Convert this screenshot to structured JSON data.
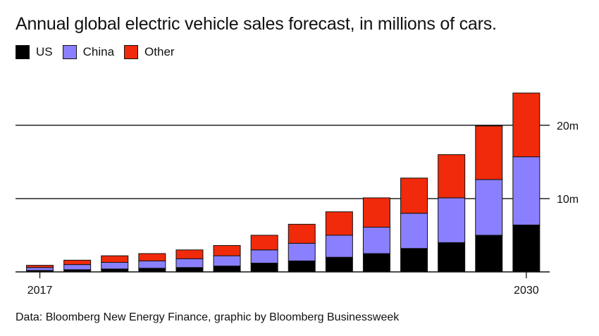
{
  "title": "Annual global electric vehicle sales forecast, in millions of cars.",
  "legend": [
    {
      "label": "US",
      "color": "#000000"
    },
    {
      "label": "China",
      "color": "#8a80ff"
    },
    {
      "label": "Other",
      "color": "#f02a0a"
    }
  ],
  "source": "Data: Bloomberg New Energy Finance, graphic by Bloomberg Businessweek",
  "chart_data": {
    "type": "bar",
    "stacked": true,
    "x": [
      2017,
      2018,
      2019,
      2020,
      2021,
      2022,
      2023,
      2024,
      2025,
      2026,
      2027,
      2028,
      2029,
      2030
    ],
    "x_tick_labels": [
      {
        "x": 2017,
        "label": "2017"
      },
      {
        "x": 2030,
        "label": "2030"
      }
    ],
    "series": [
      {
        "name": "US",
        "color": "#000000",
        "values": [
          0.2,
          0.3,
          0.4,
          0.5,
          0.6,
          0.8,
          1.2,
          1.5,
          2.0,
          2.5,
          3.2,
          4.0,
          5.0,
          6.4
        ]
      },
      {
        "name": "China",
        "color": "#8a80ff",
        "values": [
          0.4,
          0.7,
          0.9,
          1.0,
          1.2,
          1.4,
          1.8,
          2.4,
          3.0,
          3.6,
          4.8,
          6.1,
          7.6,
          9.3
        ]
      },
      {
        "name": "Other",
        "color": "#f02a0a",
        "values": [
          0.3,
          0.6,
          0.9,
          1.0,
          1.2,
          1.4,
          2.0,
          2.6,
          3.2,
          4.0,
          4.8,
          5.9,
          7.3,
          8.7
        ]
      }
    ],
    "y_ticks": [
      {
        "value": 10,
        "label": "10m"
      },
      {
        "value": 20,
        "label": "20m"
      }
    ],
    "ylim": [
      0,
      24.5
    ],
    "xlabel": "",
    "ylabel": "",
    "grid": true,
    "legend_position": "top-left"
  }
}
